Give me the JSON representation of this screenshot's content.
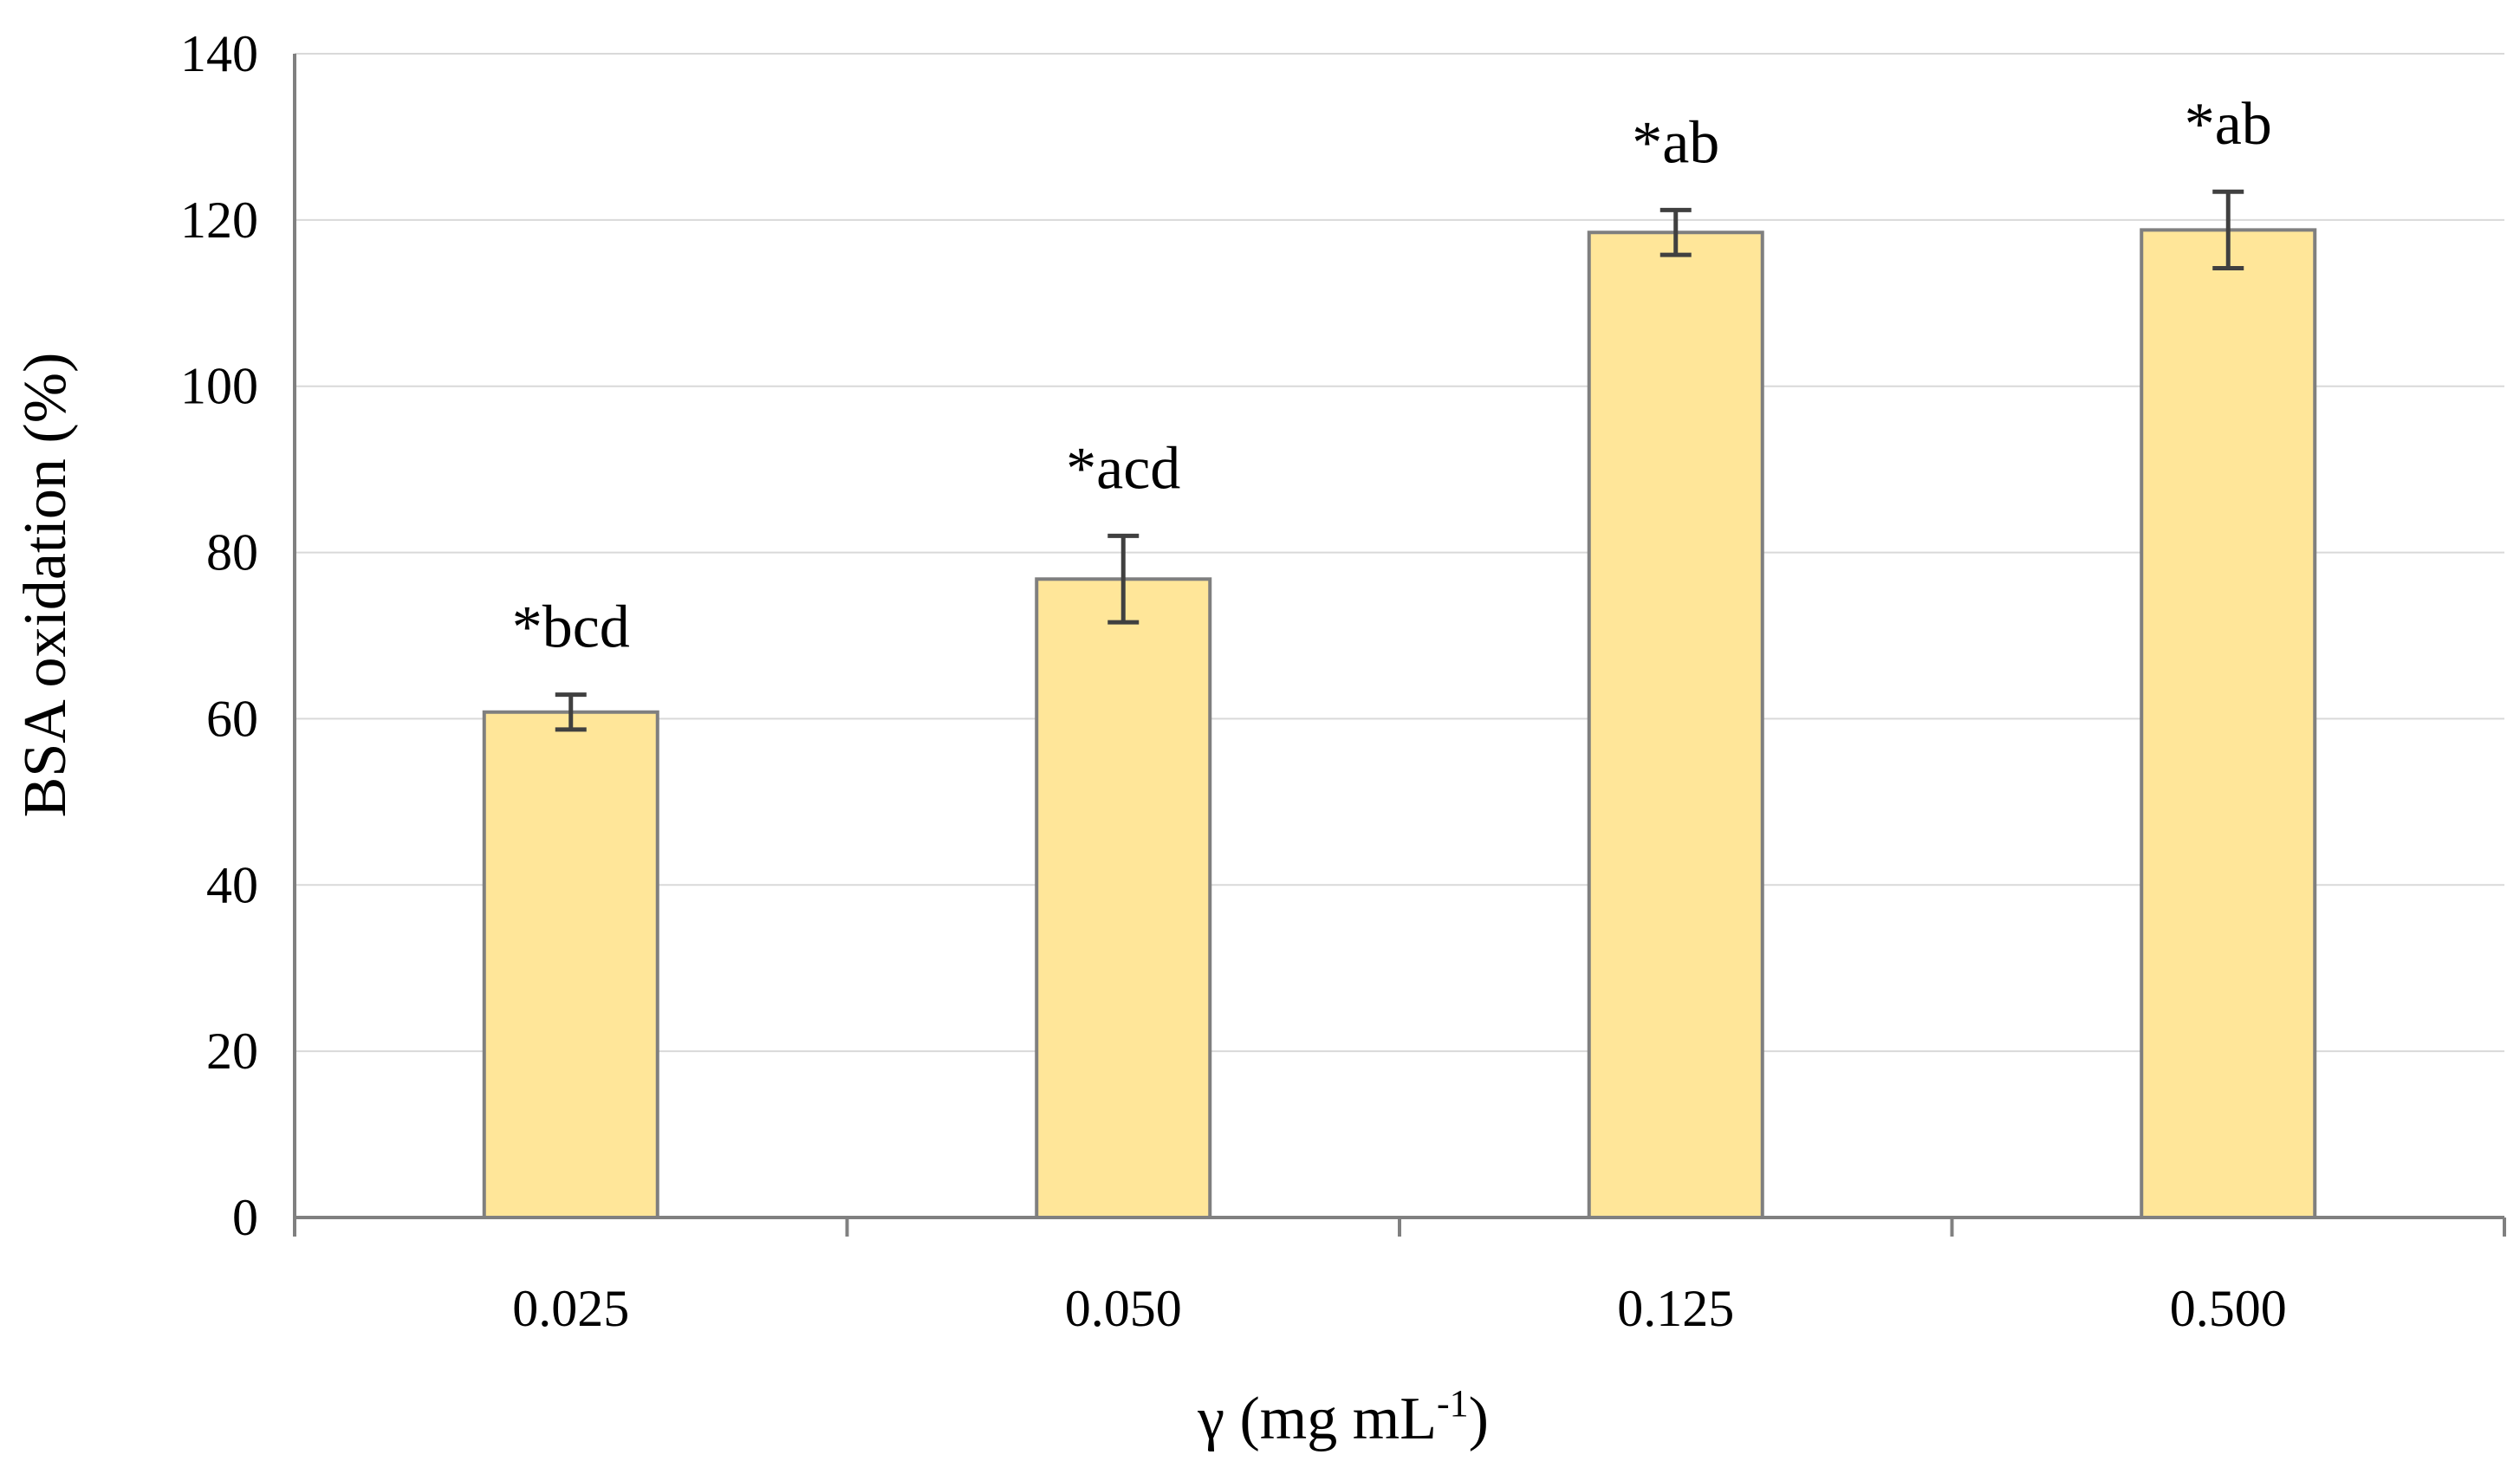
{
  "chart_data": {
    "type": "bar",
    "title": "",
    "xlabel": "γ (mg mL",
    "xlabel_superscript": "-1",
    "xlabel_close": ")",
    "ylabel": "BSA oxidation (%)",
    "categories": [
      "0.025",
      "0.050",
      "0.125",
      "0.500"
    ],
    "values": [
      60.8,
      76.8,
      118.5,
      118.8
    ],
    "errors": [
      2.1,
      5.2,
      2.7,
      4.6
    ],
    "annotations": [
      "*bcd",
      "*acd",
      "*ab",
      "*ab"
    ],
    "ylim": [
      0,
      140
    ],
    "yticks": [
      0,
      20,
      40,
      60,
      80,
      100,
      120,
      140
    ],
    "grid": true,
    "colors": {
      "bar_fill": "#FFE699",
      "bar_stroke": "#7F7F7F",
      "axis": "#808080",
      "grid": "#D9D9D9",
      "error_bar": "#404040"
    }
  }
}
